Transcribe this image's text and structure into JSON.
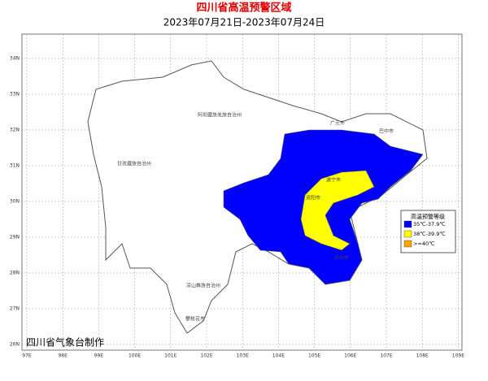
{
  "header": {
    "title": "四川省高温预警区域",
    "subtitle": "2023年07月21日-2023年07月24日"
  },
  "map": {
    "lon_ticks": [
      "97E",
      "98E",
      "99E",
      "100E",
      "101E",
      "102E",
      "103E",
      "104E",
      "105E",
      "106E",
      "107E",
      "108E",
      "109E"
    ],
    "lat_ticks": [
      "34N",
      "33N",
      "32N",
      "31N",
      "30N",
      "29N",
      "28N",
      "27N",
      "26N"
    ],
    "labels": [
      "阿坝藏族羌族自治州",
      "甘孜藏族自治州",
      "凉山彝族自治州",
      "广元市",
      "巴中市",
      "遂宁市",
      "资阳市",
      "泸州市",
      "攀枝花市"
    ]
  },
  "legend": {
    "title": "高温预警等级",
    "items": [
      {
        "label": "35℃-37.9℃",
        "color": "#0000ff"
      },
      {
        "label": "38℃-39.9℃",
        "color": "#ffff00"
      },
      {
        "label": ">=40℃",
        "color": "#ffa500"
      }
    ]
  },
  "footer": "四川省气象台制作"
}
